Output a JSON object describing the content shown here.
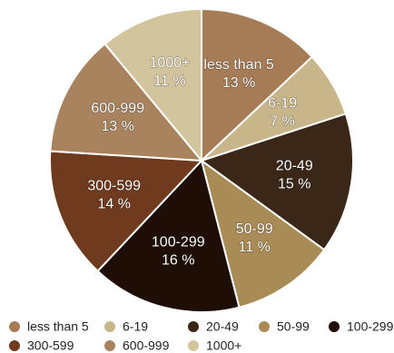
{
  "chart_data": {
    "type": "pie",
    "title": "",
    "unit": "%",
    "slices": [
      {
        "label": "less than 5",
        "value": 13,
        "value_label": "13 %",
        "color": "#a67c56"
      },
      {
        "label": "6-19",
        "value": 7,
        "value_label": "7 %",
        "color": "#c8b58a"
      },
      {
        "label": "20-49",
        "value": 15,
        "value_label": "15 %",
        "color": "#3a2718"
      },
      {
        "label": "50-99",
        "value": 11,
        "value_label": "11 %",
        "color": "#a88b55"
      },
      {
        "label": "100-299",
        "value": 16,
        "value_label": "16 %",
        "color": "#1f0e05"
      },
      {
        "label": "300-599",
        "value": 14,
        "value_label": "14 %",
        "color": "#6f3a1e"
      },
      {
        "label": "600-999",
        "value": 13,
        "value_label": "13 %",
        "color": "#a8835e"
      },
      {
        "label": "1000+",
        "value": 11,
        "value_label": "11 %",
        "color": "#d2c49c"
      }
    ],
    "legend_position": "bottom"
  }
}
